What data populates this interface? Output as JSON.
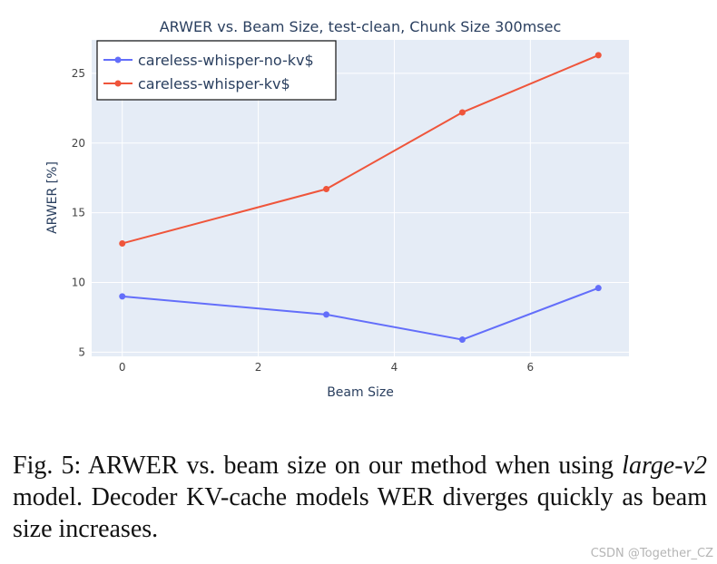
{
  "chart_data": {
    "type": "line",
    "title": "ARWER vs. Beam Size, test-clean, Chunk Size 300msec",
    "xlabel": "Beam Size",
    "ylabel": "ARWER [%]",
    "xlim": [
      -0.45,
      7.45
    ],
    "ylim": [
      4.7,
      27.4
    ],
    "xticks": [
      0,
      2,
      4,
      6
    ],
    "yticks": [
      5,
      10,
      15,
      20,
      25
    ],
    "grid": true,
    "legend_position": "top-left",
    "series": [
      {
        "name": "careless-whisper-no-kv$",
        "color": "#636efa",
        "x": [
          0,
          3,
          5,
          7
        ],
        "y": [
          9.0,
          7.7,
          5.9,
          9.6
        ]
      },
      {
        "name": "careless-whisper-kv$",
        "color": "#ef553b",
        "x": [
          0,
          3,
          5,
          7
        ],
        "y": [
          12.8,
          16.7,
          22.2,
          26.3
        ]
      }
    ]
  },
  "caption": {
    "prefix": "Fig. 5: ARWER vs. beam size on our method when using ",
    "model_name": "large-v2",
    "suffix": " model. Decoder KV-cache models WER diverges quickly as beam size increases."
  },
  "watermark": "CSDN @Together_CZ"
}
